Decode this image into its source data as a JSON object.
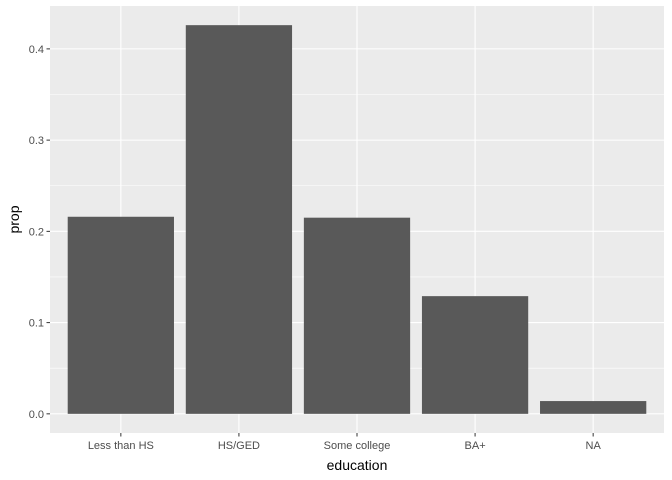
{
  "chart_data": {
    "type": "bar",
    "categories": [
      "Less than HS",
      "HS/GED",
      "Some college",
      "BA+",
      "NA"
    ],
    "values": [
      0.216,
      0.426,
      0.215,
      0.129,
      0.014
    ],
    "xlabel": "education",
    "ylabel": "prop",
    "ylim": [
      -0.021,
      0.447
    ],
    "yticks": [
      0.0,
      0.1,
      0.2,
      0.3,
      0.4
    ],
    "ytick_labels": [
      "0.0",
      "0.1",
      "0.2",
      "0.3",
      "0.4"
    ],
    "grid": true,
    "panel_color": "#ebebeb",
    "grid_color": "#ffffff",
    "bar_color": "#595959"
  }
}
